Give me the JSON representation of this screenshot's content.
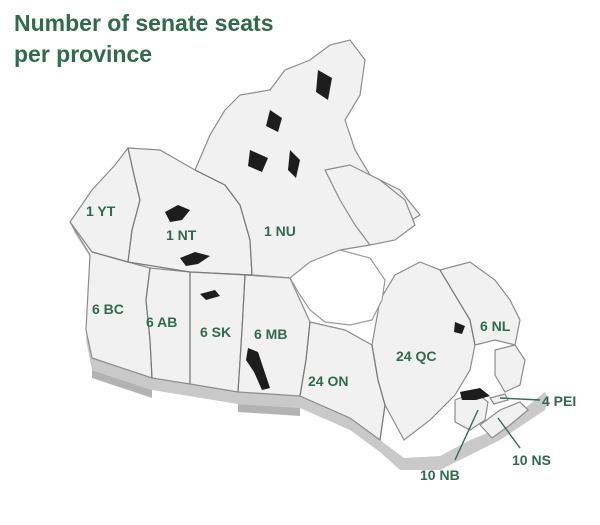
{
  "title": {
    "line1": "Number of senate seats",
    "line2": "per province"
  },
  "accent_color": "#2f6b4f",
  "provinces": [
    {
      "id": "YT",
      "label": "1 YT",
      "seats": 1
    },
    {
      "id": "NT",
      "label": "1 NT",
      "seats": 1
    },
    {
      "id": "NU",
      "label": "1 NU",
      "seats": 1
    },
    {
      "id": "BC",
      "label": "6 BC",
      "seats": 6
    },
    {
      "id": "AB",
      "label": "6 AB",
      "seats": 6
    },
    {
      "id": "SK",
      "label": "6 SK",
      "seats": 6
    },
    {
      "id": "MB",
      "label": "6 MB",
      "seats": 6
    },
    {
      "id": "ON",
      "label": "24 ON",
      "seats": 24
    },
    {
      "id": "QC",
      "label": "24 QC",
      "seats": 24
    },
    {
      "id": "NL",
      "label": "6 NL",
      "seats": 6
    },
    {
      "id": "PEI",
      "label": "4 PEI",
      "seats": 4
    },
    {
      "id": "NB",
      "label": "10 NB",
      "seats": 10
    },
    {
      "id": "NS",
      "label": "10 NS",
      "seats": 10
    }
  ]
}
